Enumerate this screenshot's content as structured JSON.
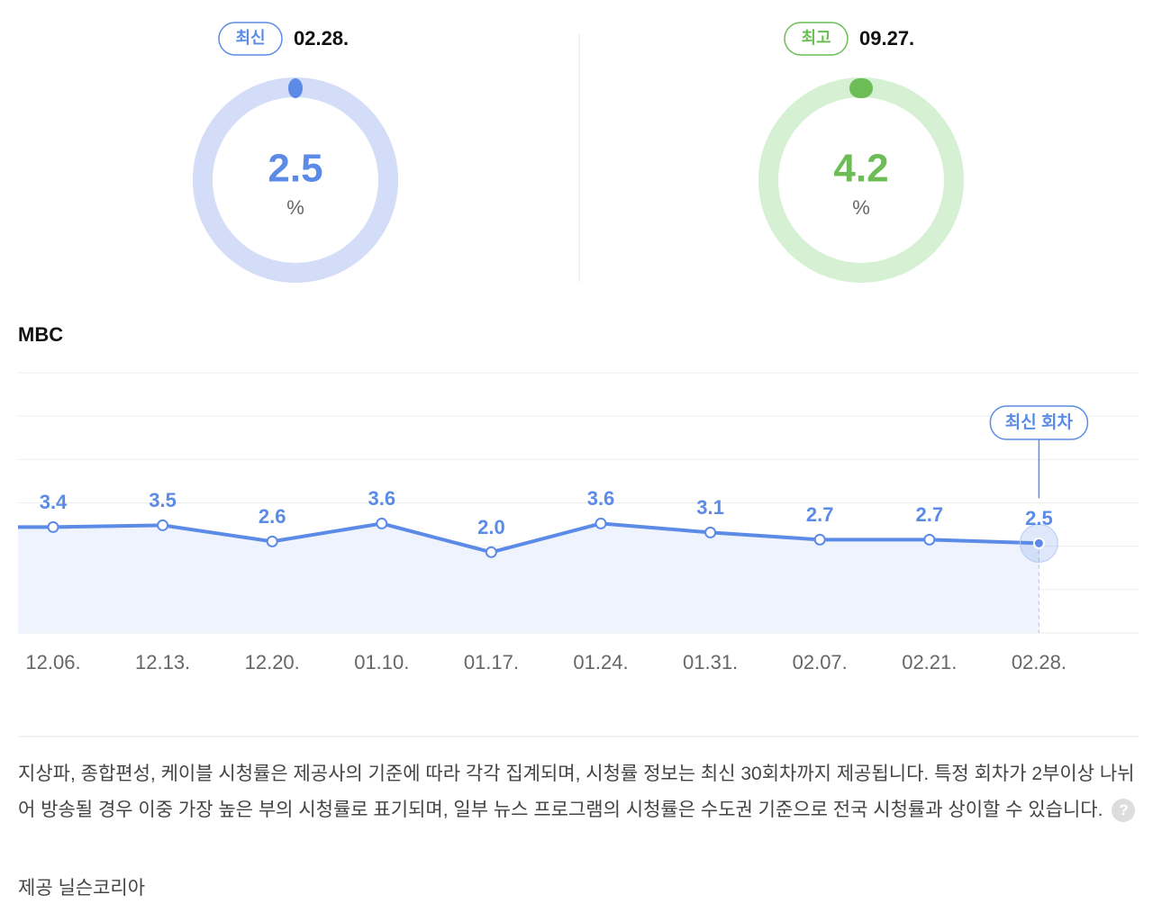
{
  "gauges": [
    {
      "badge": "최신",
      "date": "02.28.",
      "value": "2.5",
      "unit": "%"
    },
    {
      "badge": "최고",
      "date": "09.27.",
      "value": "4.2",
      "unit": "%"
    }
  ],
  "chart_data": {
    "type": "line",
    "title": "MBC",
    "categories": [
      "12.06.",
      "12.13.",
      "12.20.",
      "01.10.",
      "01.17.",
      "01.24.",
      "01.31.",
      "02.07.",
      "02.21.",
      "02.28."
    ],
    "series": [
      {
        "name": "MBC",
        "color": "#5b8be6",
        "values": [
          3.4,
          3.5,
          2.6,
          3.6,
          2.0,
          3.6,
          3.1,
          2.7,
          2.7,
          2.5
        ],
        "value_labels": [
          "3.4",
          "3.5",
          "2.6",
          "3.6",
          "2.0",
          "3.6",
          "3.1",
          "2.7",
          "2.7",
          "2.5"
        ]
      }
    ],
    "ylim": [
      -2.5,
      12
    ],
    "annotation": "최신 회차"
  },
  "notes": {
    "text": "지상파, 종합편성, 케이블 시청률은 제공사의 기준에 따라 각각 집계되며, 시청률 정보는 최신 30회차까지 제공됩니다. 특정 회차가 2부이상 나뉘어 방송될 경우 이중 가장 높은 부의 시청률로 표기되며, 일부 뉴스 프로그램의 시청률은 수도권 기준으로 전국 시청률과 상이할 수 있습니다.",
    "source": "제공 닐슨코리아"
  }
}
